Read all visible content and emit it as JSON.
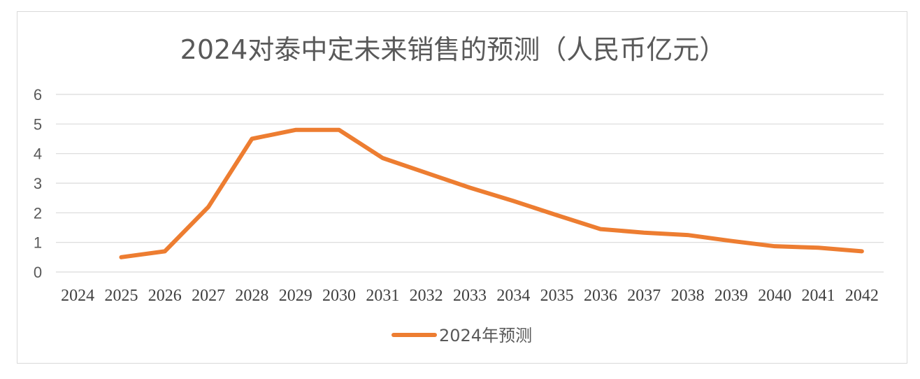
{
  "chart_data": {
    "type": "line",
    "title": "2024对泰中定未来销售的预测（人民币亿元）",
    "xlabel": "",
    "ylabel": "",
    "x": [
      "2024",
      "2025",
      "2026",
      "2027",
      "2028",
      "2029",
      "2030",
      "2031",
      "2032",
      "2033",
      "2034",
      "2035",
      "2036",
      "2037",
      "2038",
      "2039",
      "2040",
      "2041",
      "2042"
    ],
    "ylim": [
      0,
      6
    ],
    "yticks": [
      "0",
      "1",
      "2",
      "3",
      "4",
      "5",
      "6"
    ],
    "grid": true,
    "legend_position": "bottom",
    "series": [
      {
        "name": "2024年预测",
        "color": "#ed7d31",
        "values": [
          null,
          0.5,
          0.7,
          2.2,
          4.5,
          4.8,
          4.8,
          3.85,
          3.35,
          2.85,
          2.4,
          1.92,
          1.45,
          1.33,
          1.25,
          1.05,
          0.87,
          0.82,
          0.7
        ]
      }
    ]
  }
}
